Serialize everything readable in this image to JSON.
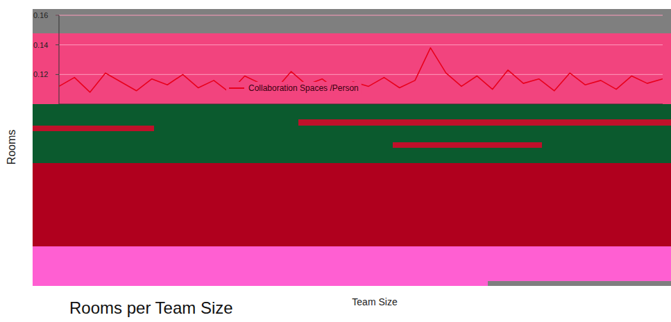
{
  "chart_data": {
    "type": "line",
    "title": "Rooms per Team Size",
    "x_label": "Team Size",
    "y_label": "Rooms",
    "x": [
      1,
      2,
      3,
      4,
      5,
      6,
      7,
      8,
      9,
      10,
      11,
      12,
      13,
      14,
      15,
      16,
      17,
      18,
      19,
      20,
      21,
      22,
      23,
      24,
      25,
      26,
      27,
      28,
      29,
      30,
      31,
      32,
      33,
      34,
      35,
      36,
      37,
      38,
      39,
      40
    ],
    "series": [
      {
        "name": "Collaboration Spaces /Person",
        "color": "#e8001c",
        "values": [
          0.112,
          0.118,
          0.108,
          0.121,
          0.115,
          0.109,
          0.117,
          0.113,
          0.12,
          0.111,
          0.116,
          0.108,
          0.119,
          0.114,
          0.11,
          0.122,
          0.113,
          0.117,
          0.109,
          0.115,
          0.112,
          0.118,
          0.111,
          0.116,
          0.138,
          0.121,
          0.112,
          0.119,
          0.11,
          0.123,
          0.114,
          0.117,
          0.109,
          0.121,
          0.113,
          0.116,
          0.11,
          0.119,
          0.114,
          0.117
        ]
      }
    ],
    "xlim": [
      1,
      40
    ],
    "xticks": [],
    "ylim": [
      0.1,
      0.16
    ],
    "yticks": [
      0.12,
      0.14,
      0.16
    ],
    "grid": true,
    "legend": "top",
    "tick_labels": "y"
  }
}
